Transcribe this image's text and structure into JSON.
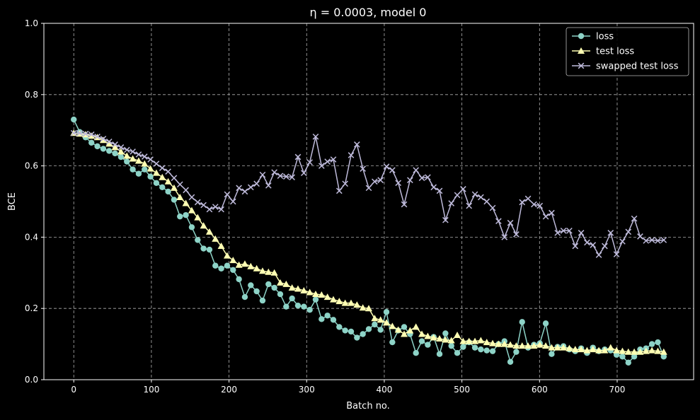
{
  "chart_data": {
    "type": "line",
    "title": "η = 0.0003, model 0",
    "xlabel": "Batch no.",
    "ylabel": "BCE",
    "xlim": [
      -38.5,
      798.5
    ],
    "ylim": [
      0.0,
      1.0
    ],
    "xticks": [
      0,
      100,
      200,
      300,
      400,
      500,
      600,
      700
    ],
    "yticks": [
      0.0,
      0.2,
      0.4,
      0.6,
      0.8,
      1.0
    ],
    "xtick_labels": [
      "0",
      "100",
      "200",
      "300",
      "400",
      "500",
      "600",
      "700"
    ],
    "ytick_labels": [
      "0.0",
      "0.2",
      "0.4",
      "0.6",
      "0.8",
      "1.0"
    ],
    "grid": true,
    "legend_position": "top-right",
    "x": [
      0,
      7.6,
      15.2,
      22.8,
      30.4,
      38.0,
      45.6,
      53.2,
      60.8,
      68.4,
      76.0,
      83.6,
      91.2,
      98.8,
      106.4,
      114.0,
      121.6,
      129.2,
      136.8,
      144.4,
      152.0,
      159.6,
      167.2,
      174.8,
      182.4,
      190.0,
      197.6,
      205.2,
      212.8,
      220.4,
      228.0,
      235.6,
      243.2,
      250.8,
      258.4,
      266.0,
      273.6,
      281.2,
      288.8,
      296.4,
      304.0,
      311.6,
      319.2,
      326.8,
      334.4,
      342.0,
      349.6,
      357.2,
      364.8,
      372.4,
      380.0,
      387.6,
      395.2,
      402.8,
      410.4,
      418.0,
      425.6,
      433.2,
      440.8,
      448.4,
      456.0,
      463.6,
      471.2,
      478.8,
      486.4,
      494.0,
      501.6,
      509.2,
      516.8,
      524.4,
      532.0,
      539.6,
      547.2,
      554.8,
      562.4,
      570.0,
      577.6,
      585.2,
      592.8,
      600.4,
      608.0,
      615.6,
      623.2,
      630.8,
      638.4,
      646.0,
      653.6,
      661.2,
      668.8,
      676.4,
      684.0,
      691.6,
      699.2,
      706.8,
      714.4,
      722.0,
      729.6,
      737.2,
      744.8,
      752.4,
      760.0
    ],
    "series": [
      {
        "name": "loss",
        "color": "#8dd3c7",
        "marker": "circle",
        "values": [
          0.73,
          0.695,
          0.68,
          0.665,
          0.655,
          0.648,
          0.642,
          0.635,
          0.625,
          0.612,
          0.59,
          0.578,
          0.59,
          0.57,
          0.552,
          0.54,
          0.528,
          0.505,
          0.458,
          0.462,
          0.428,
          0.392,
          0.368,
          0.365,
          0.32,
          0.312,
          0.32,
          0.308,
          0.282,
          0.232,
          0.265,
          0.248,
          0.222,
          0.268,
          0.258,
          0.24,
          0.205,
          0.228,
          0.208,
          0.205,
          0.196,
          0.225,
          0.17,
          0.18,
          0.168,
          0.148,
          0.138,
          0.135,
          0.118,
          0.128,
          0.142,
          0.155,
          0.14,
          0.19,
          0.105,
          0.138,
          0.148,
          0.128,
          0.075,
          0.108,
          0.098,
          0.12,
          0.072,
          0.13,
          0.095,
          0.075,
          0.092,
          0.105,
          0.09,
          0.085,
          0.082,
          0.08,
          0.1,
          0.108,
          0.05,
          0.078,
          0.162,
          0.09,
          0.098,
          0.102,
          0.158,
          0.072,
          0.092,
          0.094,
          0.085,
          0.08,
          0.088,
          0.075,
          0.09,
          0.08,
          0.085,
          0.082,
          0.07,
          0.065,
          0.048,
          0.065,
          0.085,
          0.088,
          0.1,
          0.105,
          0.065
        ]
      },
      {
        "name": "test loss",
        "color": "#ffffb3",
        "marker": "triangle",
        "values": [
          0.692,
          0.69,
          0.688,
          0.684,
          0.68,
          0.672,
          0.662,
          0.652,
          0.64,
          0.628,
          0.62,
          0.614,
          0.606,
          0.592,
          0.58,
          0.568,
          0.556,
          0.538,
          0.512,
          0.495,
          0.475,
          0.455,
          0.432,
          0.415,
          0.395,
          0.375,
          0.348,
          0.335,
          0.322,
          0.325,
          0.318,
          0.312,
          0.305,
          0.302,
          0.3,
          0.272,
          0.268,
          0.258,
          0.255,
          0.25,
          0.245,
          0.24,
          0.238,
          0.232,
          0.225,
          0.22,
          0.215,
          0.215,
          0.21,
          0.202,
          0.2,
          0.172,
          0.168,
          0.16,
          0.15,
          0.14,
          0.128,
          0.138,
          0.148,
          0.128,
          0.122,
          0.118,
          0.115,
          0.112,
          0.11,
          0.125,
          0.108,
          0.108,
          0.108,
          0.11,
          0.105,
          0.102,
          0.1,
          0.1,
          0.098,
          0.095,
          0.095,
          0.095,
          0.095,
          0.098,
          0.095,
          0.09,
          0.09,
          0.09,
          0.088,
          0.085,
          0.085,
          0.082,
          0.085,
          0.082,
          0.082,
          0.09,
          0.082,
          0.08,
          0.078,
          0.078,
          0.078,
          0.08,
          0.082,
          0.08,
          0.078
        ]
      },
      {
        "name": "swapped test loss",
        "color": "#bebada",
        "marker": "x",
        "values": [
          0.692,
          0.692,
          0.69,
          0.688,
          0.682,
          0.676,
          0.668,
          0.66,
          0.652,
          0.645,
          0.64,
          0.632,
          0.626,
          0.618,
          0.606,
          0.594,
          0.584,
          0.566,
          0.548,
          0.532,
          0.512,
          0.498,
          0.49,
          0.478,
          0.485,
          0.478,
          0.52,
          0.5,
          0.538,
          0.528,
          0.54,
          0.55,
          0.575,
          0.545,
          0.582,
          0.572,
          0.57,
          0.568,
          0.625,
          0.58,
          0.61,
          0.682,
          0.6,
          0.612,
          0.618,
          0.53,
          0.55,
          0.63,
          0.66,
          0.592,
          0.538,
          0.556,
          0.56,
          0.598,
          0.588,
          0.552,
          0.492,
          0.56,
          0.588,
          0.566,
          0.568,
          0.54,
          0.53,
          0.448,
          0.495,
          0.518,
          0.535,
          0.488,
          0.52,
          0.512,
          0.5,
          0.482,
          0.445,
          0.4,
          0.44,
          0.408,
          0.498,
          0.508,
          0.492,
          0.488,
          0.458,
          0.468,
          0.412,
          0.418,
          0.418,
          0.375,
          0.412,
          0.385,
          0.378,
          0.35,
          0.375,
          0.412,
          0.352,
          0.388,
          0.415,
          0.452,
          0.402,
          0.39,
          0.392,
          0.39,
          0.392
        ]
      }
    ]
  }
}
